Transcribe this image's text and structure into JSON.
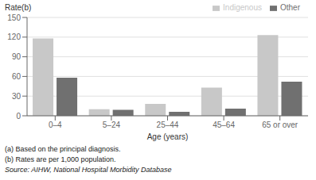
{
  "chart_data": {
    "type": "bar",
    "categories": [
      "0–4",
      "5–24",
      "25–44",
      "45–64",
      "65 or over"
    ],
    "series": [
      {
        "name": "Indigenous",
        "color": "#c8c8c8",
        "values": [
          118,
          10,
          18,
          43,
          123
        ]
      },
      {
        "name": "Other",
        "color": "#707070",
        "values": [
          58,
          9,
          6,
          11,
          52
        ]
      }
    ],
    "xlabel": "Age (years)",
    "ylabel": "Rate(b)",
    "ylim": [
      0,
      150
    ],
    "yticks": [
      0,
      30,
      60,
      90,
      120,
      150
    ],
    "grid": true,
    "legend": "upper right",
    "annotations": [
      "(a) Based on the principal diagnosis.",
      "(b) Rates are per 1,000 population.",
      "Source: AIHW, National Hospital Morbidity Database"
    ]
  }
}
